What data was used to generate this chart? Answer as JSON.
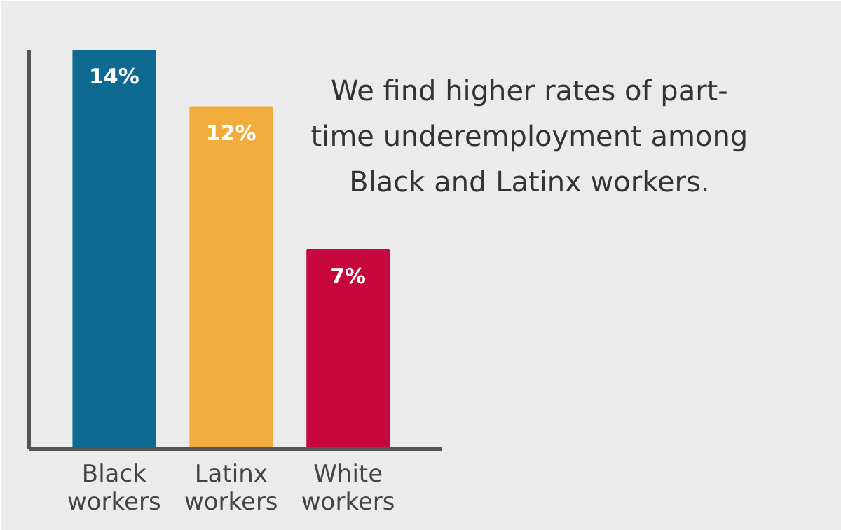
{
  "chart_data": {
    "type": "bar",
    "title": "We find higher rates of part-time underemployment among Black and Latinx workers.",
    "categories": [
      "Black workers",
      "Latinx workers",
      "White workers"
    ],
    "values": [
      14,
      12,
      7
    ],
    "colors": [
      "#0f6a91",
      "#f0ad3c",
      "#c8073f"
    ],
    "value_labels": [
      "14%",
      "12%",
      "7%"
    ],
    "tick_labels": "x"
  }
}
